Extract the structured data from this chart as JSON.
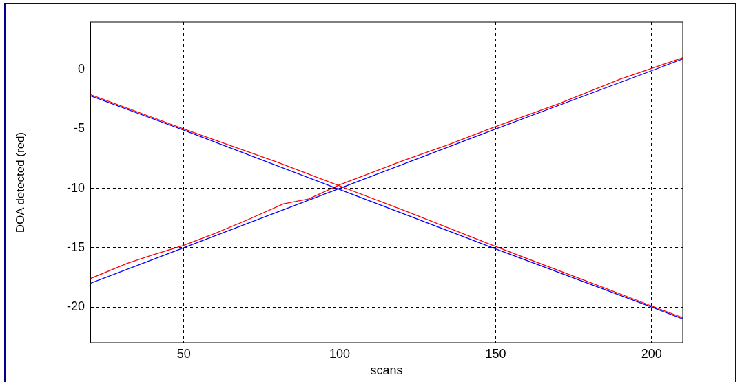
{
  "chart_data": {
    "type": "line",
    "xlabel": "scans",
    "ylabel": "DOA detected (red)",
    "xlim": [
      20,
      210
    ],
    "ylim": [
      -23,
      4
    ],
    "xticks": [
      50,
      100,
      150,
      200
    ],
    "yticks": [
      -20,
      -15,
      -10,
      -5,
      0
    ],
    "grid": true,
    "legend": false,
    "marker": "none",
    "line_style": "solid",
    "series": [
      {
        "color": "#ff0000",
        "x": [
          20,
          50,
          80,
          90,
          100,
          120,
          150,
          180,
          200,
          210
        ],
        "values": [
          -2.1,
          -5.0,
          -7.8,
          -8.8,
          -9.8,
          -11.8,
          -14.9,
          -17.9,
          -19.9,
          -20.9
        ]
      },
      {
        "color": "#0000ff",
        "x": [
          20,
          50,
          100,
          150,
          200,
          210
        ],
        "values": [
          -2.2,
          -5.1,
          -10.1,
          -15.1,
          -20.0,
          -21.0
        ]
      },
      {
        "color": "#ff0000",
        "x": [
          20,
          32,
          40,
          50,
          60,
          70,
          82,
          90,
          100,
          120,
          135,
          150,
          170,
          190,
          200,
          210
        ],
        "values": [
          -17.6,
          -16.3,
          -15.6,
          -14.8,
          -13.8,
          -12.7,
          -11.3,
          -10.9,
          -9.7,
          -7.7,
          -6.3,
          -4.8,
          -2.9,
          -0.8,
          0.1,
          1.0
        ]
      },
      {
        "color": "#0000ff",
        "x": [
          20,
          50,
          100,
          150,
          200,
          210
        ],
        "values": [
          -18.0,
          -15.0,
          -10.0,
          -5.0,
          -0.1,
          0.9
        ]
      }
    ]
  }
}
